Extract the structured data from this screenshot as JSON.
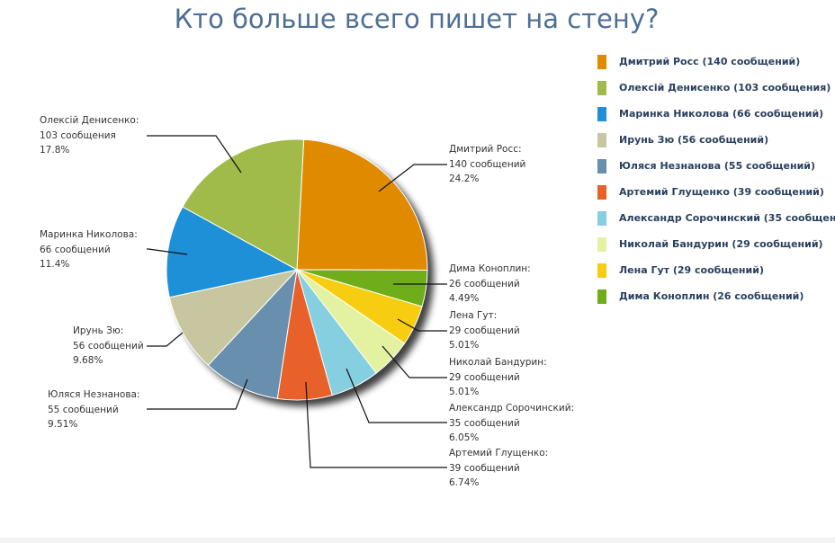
{
  "chart_data": {
    "type": "pie",
    "title": "Кто больше всего пишет на стену?",
    "legend_position": "right",
    "slices": [
      {
        "name": "Дмитрий Росс",
        "value": 140,
        "percent": "24.2%",
        "unit": "сообщений",
        "legend": "Дмитрий Росс (140 сообщений)",
        "color": "#e08a00"
      },
      {
        "name": "Дима Коноплин",
        "value": 26,
        "percent": "4.49%",
        "unit": "сообщений",
        "legend": "Дима Коноплин (26 сообщений)",
        "color": "#6fae1a"
      },
      {
        "name": "Лена Гут",
        "value": 29,
        "percent": "5.01%",
        "unit": "сообщений",
        "legend": "Лена Гут (29 сообщений)",
        "color": "#f7cd12"
      },
      {
        "name": "Николай Бандурин",
        "value": 29,
        "percent": "5.01%",
        "unit": "сообщений",
        "legend": "Николай Бандурин (29 сообщений)",
        "color": "#e3f2a0"
      },
      {
        "name": "Александр Сорочинский",
        "value": 35,
        "percent": "6.05%",
        "unit": "сообщений",
        "legend": "Александр Сорочинский (35 сообщен",
        "color": "#86cfe0"
      },
      {
        "name": "Артемий Глущенко",
        "value": 39,
        "percent": "6.74%",
        "unit": "сообщений",
        "legend": "Артемий Глущенко (39 сообщений)",
        "color": "#e8602a"
      },
      {
        "name": "Юляся Незнанова",
        "value": 55,
        "percent": "9.51%",
        "unit": "сообщений",
        "legend": "Юляся Незнанова (55 сообщений)",
        "color": "#6890ae"
      },
      {
        "name": "Ирунь Зю",
        "value": 56,
        "percent": "9.68%",
        "unit": "сообщений",
        "legend": "Ирунь Зю (56 сообщений)",
        "color": "#c8c6a0"
      },
      {
        "name": "Маринка Николова",
        "value": 66,
        "percent": "11.4%",
        "unit": "сообщений",
        "legend": "Маринка Николова (66 сообщений)",
        "color": "#1e90d8"
      },
      {
        "name": "Олексій Денисенко",
        "value": 103,
        "percent": "17.8%",
        "unit": "сообщения",
        "legend": "Олексій Денисенко (103 сообщения)",
        "color": "#a0bb4a"
      }
    ],
    "legend_order": [
      0,
      9,
      8,
      7,
      6,
      5,
      4,
      3,
      2,
      1
    ]
  }
}
